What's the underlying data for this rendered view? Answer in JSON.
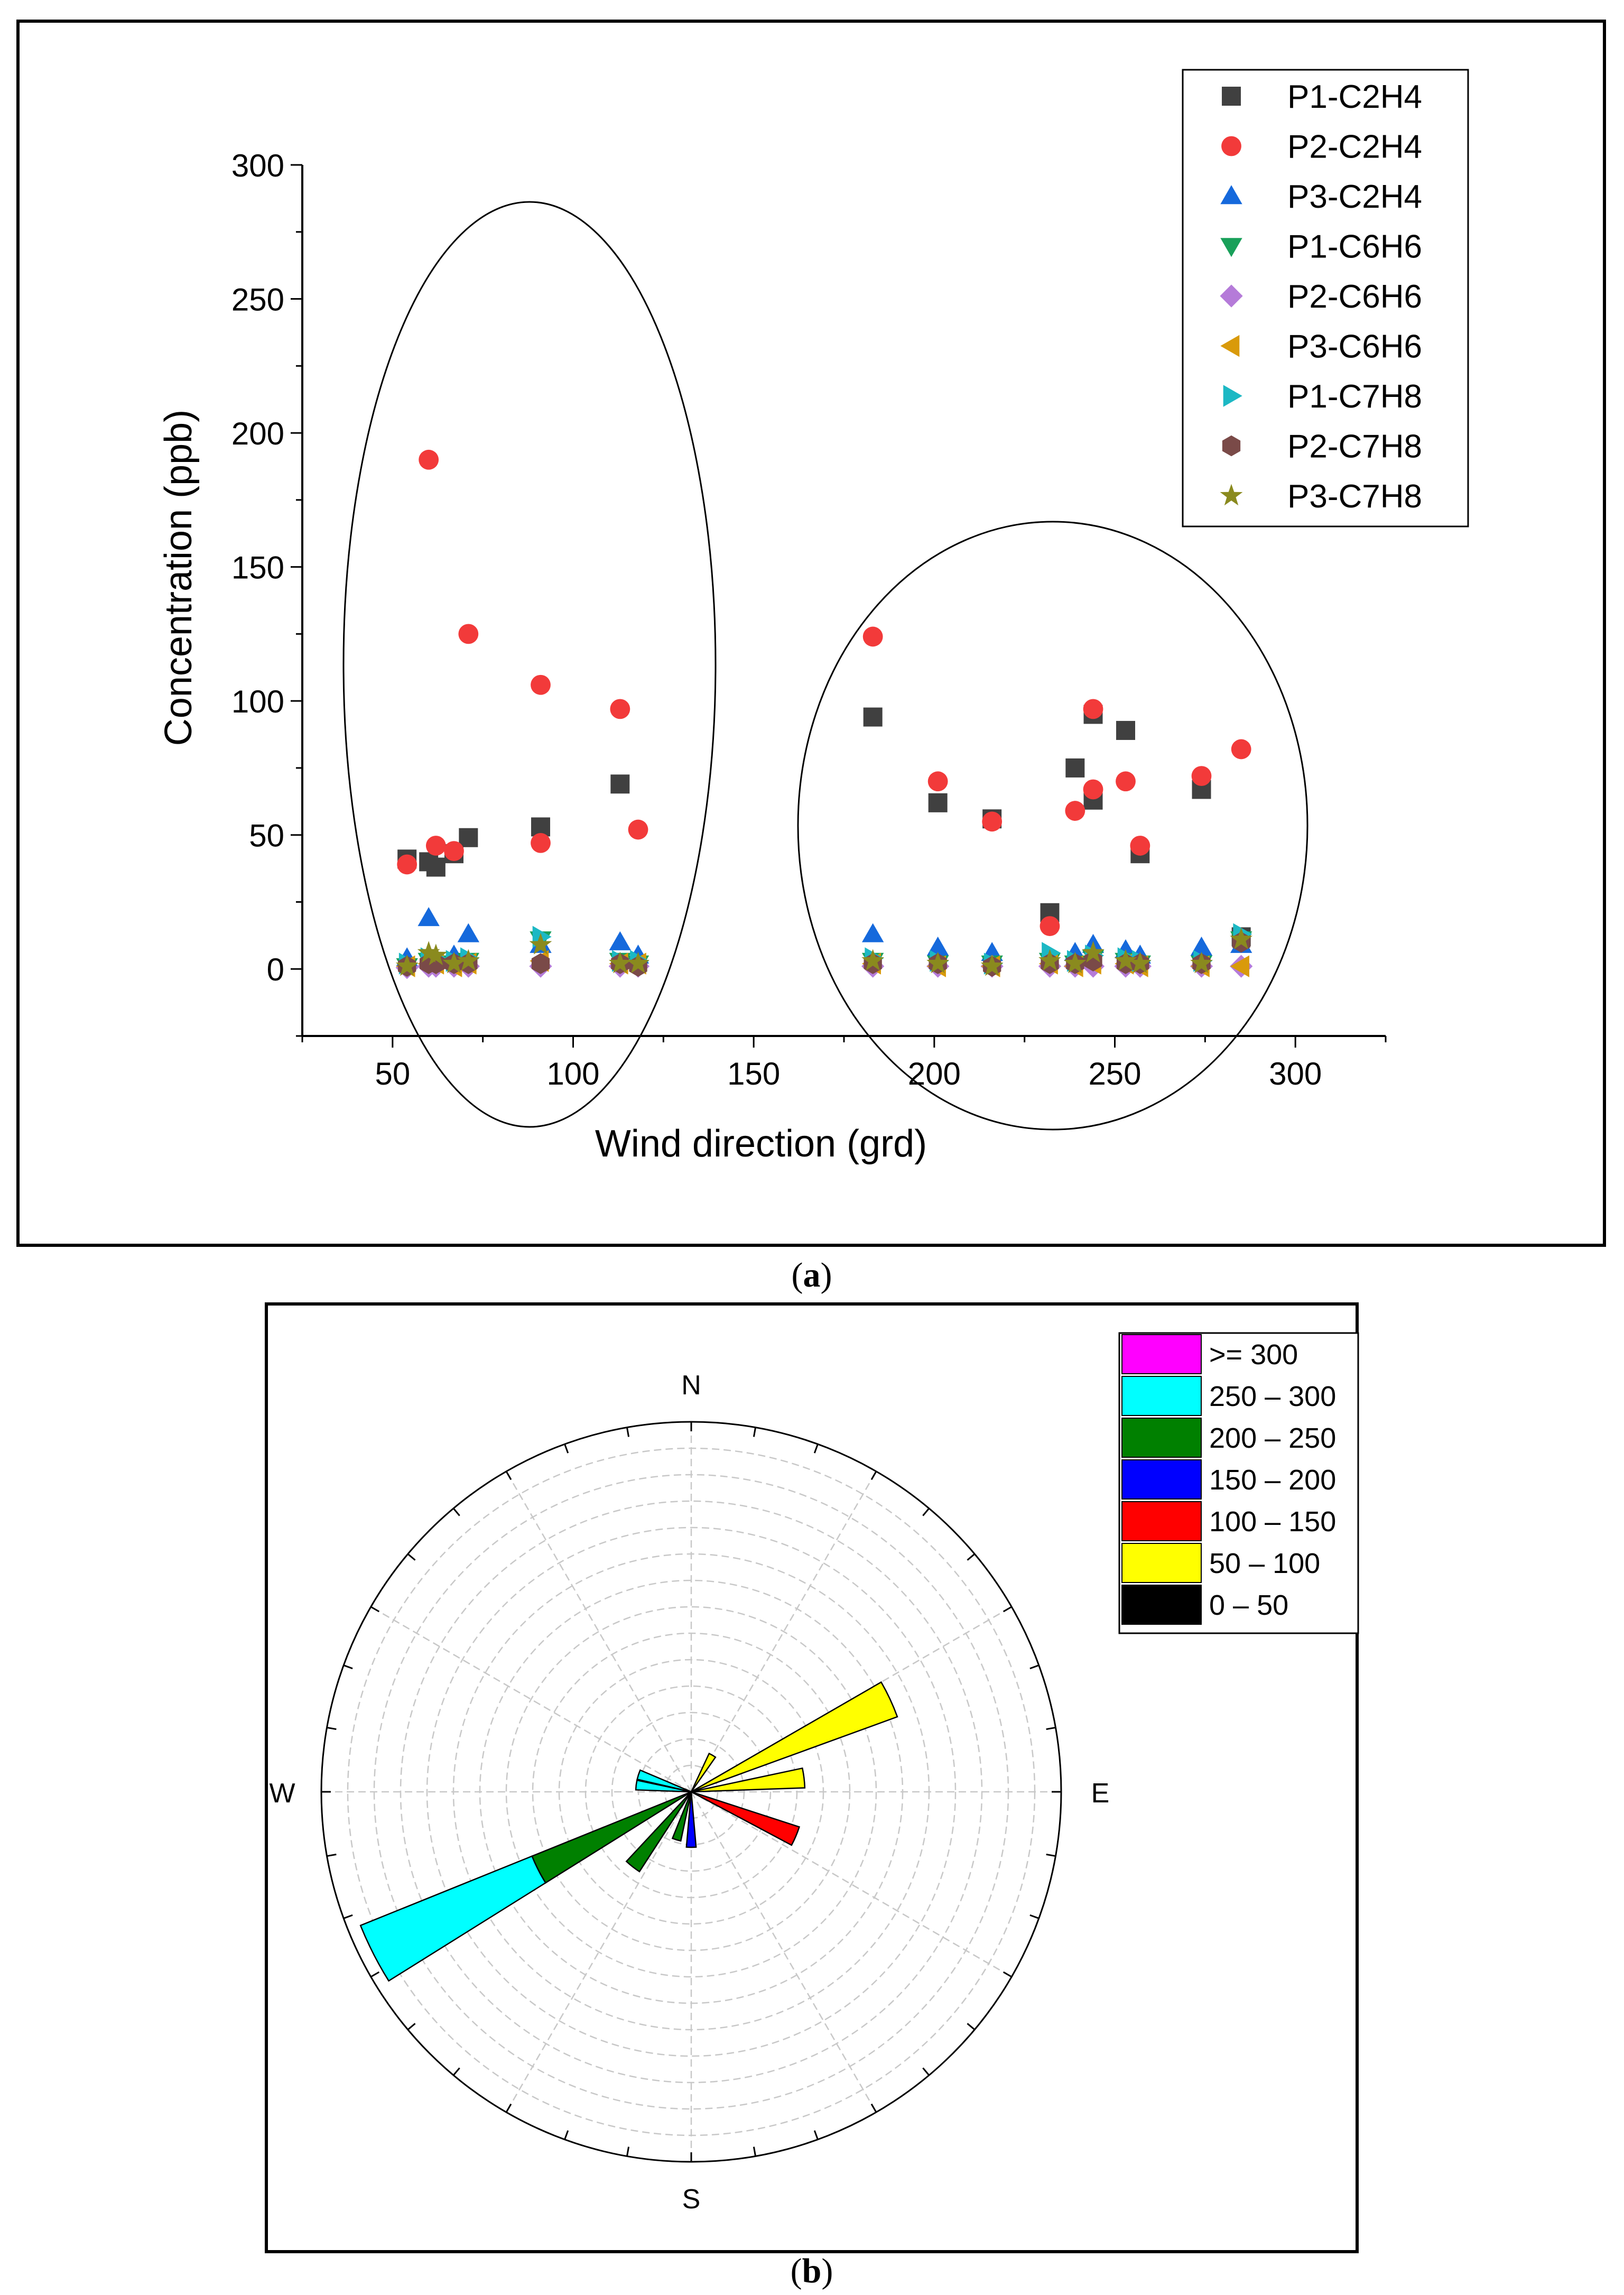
{
  "chart_data": [
    {
      "id": "a",
      "type": "scatter",
      "caption": "a",
      "xlabel": "Wind direction (grd)",
      "ylabel": "Concentration (ppb)",
      "xlim": [
        25,
        325
      ],
      "ylim": [
        -25,
        300
      ],
      "xticks": [
        "50",
        "100",
        "150",
        "200",
        "250",
        "300"
      ],
      "xtick_values": [
        50,
        100,
        150,
        200,
        250,
        300
      ],
      "yticks": [
        "0",
        "50",
        "100",
        "150",
        "200",
        "250",
        "300"
      ],
      "ytick_values": [
        0,
        50,
        100,
        150,
        200,
        250,
        300
      ],
      "legend_position": "top-right",
      "annotations": [
        "ellipse around 50-120 grd cluster",
        "ellipse around 180-290 grd cluster"
      ],
      "series": [
        {
          "name": "P1-C2H4",
          "marker": "square",
          "color": "#404040",
          "points": [
            [
              54,
              41
            ],
            [
              60,
              40
            ],
            [
              62,
              38
            ],
            [
              67,
              43
            ],
            [
              71,
              49
            ],
            [
              91,
              53
            ],
            [
              113,
              69
            ],
            [
              183,
              94
            ],
            [
              201,
              62
            ],
            [
              216,
              56
            ],
            [
              232,
              21
            ],
            [
              239,
              75
            ],
            [
              244,
              95
            ],
            [
              244,
              63
            ],
            [
              253,
              89
            ],
            [
              257,
              43
            ],
            [
              274,
              67
            ],
            [
              285,
              12
            ]
          ]
        },
        {
          "name": "P2-C2H4",
          "marker": "circle",
          "color": "#f23a3a",
          "points": [
            [
              54,
              39
            ],
            [
              60,
              190
            ],
            [
              62,
              46
            ],
            [
              67,
              44
            ],
            [
              71,
              125
            ],
            [
              91,
              106
            ],
            [
              91,
              47
            ],
            [
              113,
              97
            ],
            [
              118,
              52
            ],
            [
              183,
              124
            ],
            [
              201,
              70
            ],
            [
              216,
              55
            ],
            [
              232,
              16
            ],
            [
              239,
              59
            ],
            [
              244,
              97
            ],
            [
              244,
              67
            ],
            [
              253,
              70
            ],
            [
              257,
              46
            ],
            [
              274,
              72
            ],
            [
              285,
              82
            ]
          ]
        },
        {
          "name": "P3-C2H4",
          "marker": "triangle-up",
          "color": "#1569dc",
          "points": [
            [
              54,
              4
            ],
            [
              60,
              19
            ],
            [
              67,
              5
            ],
            [
              71,
              13
            ],
            [
              91,
              9
            ],
            [
              113,
              10
            ],
            [
              118,
              5
            ],
            [
              183,
              13
            ],
            [
              201,
              8
            ],
            [
              216,
              6
            ],
            [
              239,
              6
            ],
            [
              244,
              9
            ],
            [
              253,
              7
            ],
            [
              257,
              5
            ],
            [
              274,
              8
            ],
            [
              285,
              9
            ]
          ]
        },
        {
          "name": "P1-C6H6",
          "marker": "triangle-down",
          "color": "#19a05a",
          "points": [
            [
              54,
              1
            ],
            [
              60,
              3
            ],
            [
              62,
              2
            ],
            [
              67,
              2
            ],
            [
              71,
              3
            ],
            [
              91,
              11
            ],
            [
              113,
              3
            ],
            [
              118,
              2
            ],
            [
              183,
              3
            ],
            [
              201,
              2
            ],
            [
              216,
              2
            ],
            [
              232,
              3
            ],
            [
              239,
              2
            ],
            [
              244,
              4
            ],
            [
              253,
              3
            ],
            [
              257,
              2
            ],
            [
              274,
              2
            ],
            [
              285,
              11
            ]
          ]
        },
        {
          "name": "P2-C6H6",
          "marker": "diamond",
          "color": "#b57bd9",
          "points": [
            [
              54,
              0.5
            ],
            [
              60,
              1
            ],
            [
              62,
              1
            ],
            [
              67,
              1
            ],
            [
              71,
              1
            ],
            [
              91,
              1
            ],
            [
              113,
              1
            ],
            [
              118,
              1
            ],
            [
              183,
              1
            ],
            [
              201,
              1
            ],
            [
              216,
              1
            ],
            [
              232,
              1
            ],
            [
              239,
              1
            ],
            [
              244,
              1
            ],
            [
              253,
              1
            ],
            [
              257,
              1
            ],
            [
              274,
              1
            ],
            [
              285,
              1
            ]
          ]
        },
        {
          "name": "P3-C6H6",
          "marker": "triangle-left",
          "color": "#d99a0a",
          "points": [
            [
              54,
              1
            ],
            [
              60,
              2
            ],
            [
              62,
              2
            ],
            [
              67,
              1
            ],
            [
              71,
              2
            ],
            [
              91,
              3
            ],
            [
              113,
              2
            ],
            [
              118,
              2
            ],
            [
              183,
              2
            ],
            [
              201,
              1
            ],
            [
              216,
              1
            ],
            [
              232,
              2
            ],
            [
              239,
              1
            ],
            [
              244,
              2
            ],
            [
              253,
              2
            ],
            [
              257,
              1
            ],
            [
              274,
              1
            ],
            [
              285,
              1
            ]
          ]
        },
        {
          "name": "P1-C7H8",
          "marker": "triangle-right",
          "color": "#1cb8c4",
          "points": [
            [
              54,
              2
            ],
            [
              60,
              4
            ],
            [
              62,
              4
            ],
            [
              67,
              3
            ],
            [
              71,
              4
            ],
            [
              91,
              12
            ],
            [
              113,
              3
            ],
            [
              118,
              3
            ],
            [
              183,
              4
            ],
            [
              201,
              3
            ],
            [
              216,
              2
            ],
            [
              232,
              6
            ],
            [
              239,
              3
            ],
            [
              244,
              5
            ],
            [
              253,
              4
            ],
            [
              257,
              3
            ],
            [
              274,
              3
            ],
            [
              285,
              13
            ]
          ]
        },
        {
          "name": "P2-C7H8",
          "marker": "hexagon",
          "color": "#7a4a48",
          "points": [
            [
              54,
              1
            ],
            [
              60,
              2
            ],
            [
              62,
              2
            ],
            [
              67,
              2
            ],
            [
              71,
              2
            ],
            [
              91,
              2
            ],
            [
              113,
              2
            ],
            [
              118,
              1
            ],
            [
              183,
              2
            ],
            [
              201,
              2
            ],
            [
              216,
              1
            ],
            [
              232,
              2
            ],
            [
              239,
              2
            ],
            [
              244,
              3
            ],
            [
              253,
              2
            ],
            [
              257,
              2
            ],
            [
              274,
              2
            ],
            [
              285,
              10
            ]
          ]
        },
        {
          "name": "P3-C7H8",
          "marker": "star",
          "color": "#8a8a1e",
          "points": [
            [
              54,
              1
            ],
            [
              60,
              6
            ],
            [
              62,
              5
            ],
            [
              67,
              2
            ],
            [
              71,
              3
            ],
            [
              91,
              9
            ],
            [
              113,
              2
            ],
            [
              118,
              2
            ],
            [
              183,
              3
            ],
            [
              201,
              2
            ],
            [
              216,
              1
            ],
            [
              232,
              3
            ],
            [
              239,
              2
            ],
            [
              244,
              6
            ],
            [
              253,
              3
            ],
            [
              257,
              2
            ],
            [
              274,
              2
            ],
            [
              285,
              11
            ]
          ]
        }
      ]
    },
    {
      "id": "b",
      "type": "polar-bar",
      "caption": "b",
      "directions": [
        "N",
        "E",
        "S",
        "W"
      ],
      "rings": 14,
      "radial_max": 14,
      "legend_position": "top-right",
      "legend": [
        {
          "label": ">= 300",
          "color": "#ff00ff"
        },
        {
          "label": "250 – 300",
          "color": "#00ffff"
        },
        {
          "label": "200 – 250",
          "color": "#008000"
        },
        {
          "label": "150 – 200",
          "color": "#0000ff"
        },
        {
          "label": "100 – 150",
          "color": "#ff0000"
        },
        {
          "label": "50 – 100",
          "color": "#ffff00"
        },
        {
          "label": "0 – 50",
          "color": "#000000"
        }
      ],
      "wedges": [
        {
          "dir": 30,
          "start": 0,
          "end": 1.6,
          "color": "#ffff00"
        },
        {
          "dir": 65,
          "start": 0,
          "end": 8.3,
          "color": "#ffff00"
        },
        {
          "dir": 83,
          "start": 0,
          "end": 4.3,
          "color": "#ffff00"
        },
        {
          "dir": 113,
          "start": 0,
          "end": 4.3,
          "color": "#ff0000"
        },
        {
          "dir": 180,
          "start": 0,
          "end": 2.1,
          "color": "#0000ff"
        },
        {
          "dir": 197,
          "start": 0,
          "end": 1.9,
          "color": "#008000"
        },
        {
          "dir": 218,
          "start": 0,
          "end": 3.6,
          "color": "#008000"
        },
        {
          "dir": 243,
          "start": 0,
          "end": 6.5,
          "color": "#008000"
        },
        {
          "dir": 243,
          "start": 6.5,
          "end": 13.5,
          "color": "#00ffff"
        },
        {
          "dir": 277,
          "start": 0,
          "end": 2.1,
          "color": "#00ffff"
        },
        {
          "dir": 288,
          "start": 0,
          "end": 2.1,
          "color": "#00ffff"
        }
      ]
    }
  ]
}
